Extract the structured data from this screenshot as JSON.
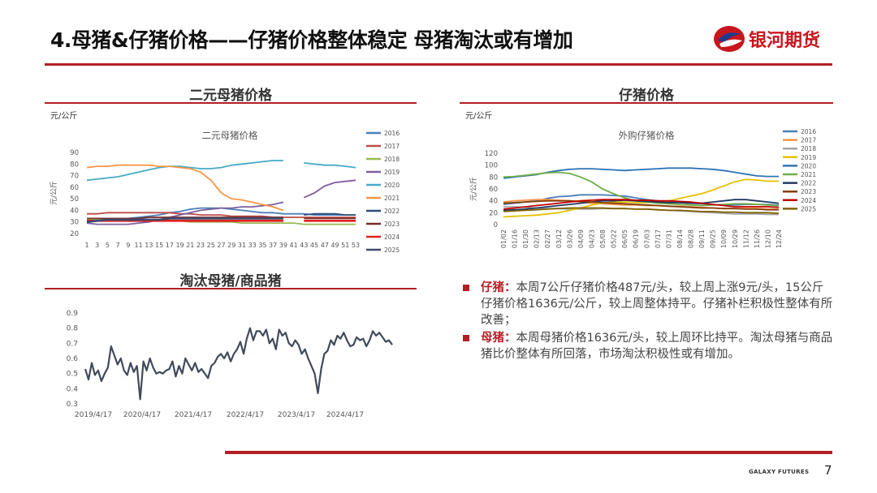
{
  "header": {
    "title": "4.母猪&仔猪价格——仔猪价格整体稳定 母猪淘汰或有增加",
    "logo_text": "银河期货",
    "accent_color": "#b21f24"
  },
  "sections": {
    "sow_price": {
      "heading": "二元母猪价格",
      "unit": "元/公斤"
    },
    "piglet_price": {
      "heading": "仔猪价格",
      "unit": "元/公斤"
    },
    "cull_ratio": {
      "heading": "淘汰母猪/商品猪"
    }
  },
  "bullets": [
    {
      "label": "仔猪：",
      "text": "本周7公斤仔猪价格487元/头，较上周上涨9元/头，15公斤仔猪价格1636元/公斤，较上周整体持平。仔猪补栏积极性整体有所改善；"
    },
    {
      "label": "母猪：",
      "text": "本周母猪价格1636元/头，较上周环比持平。淘汰母猪与商品猪比价整体有所回落，市场淘汰积极性或有增加。"
    }
  ],
  "footer": {
    "brand": "GALAXY FUTURES",
    "page": "7"
  },
  "chart_data": [
    {
      "type": "line",
      "title": "二元母猪价格",
      "ylabel": "元/公斤",
      "ylim": [
        20,
        90
      ],
      "yticks": [
        "20",
        "30",
        "40",
        "50",
        "60",
        "70",
        "80",
        "90"
      ],
      "x": [
        1,
        3,
        5,
        7,
        9,
        11,
        13,
        15,
        17,
        19,
        21,
        23,
        25,
        27,
        29,
        31,
        33,
        35,
        37,
        39,
        41,
        43,
        45,
        47,
        49,
        51,
        53
      ],
      "xticks": [
        "1",
        "3",
        "5",
        "7",
        "9",
        "11",
        "13",
        "15",
        "17",
        "19",
        "21",
        "23",
        "25",
        "27",
        "29",
        "31",
        "33",
        "35",
        "37",
        "39",
        "41",
        "43",
        "45",
        "47",
        "49",
        "51",
        "53"
      ],
      "legend_position": "right",
      "series": [
        {
          "name": "2016",
          "color": "#4a7ebb",
          "values": [
            33,
            33,
            33,
            33,
            33,
            34,
            35,
            36,
            38,
            39,
            41,
            42,
            42,
            42,
            41,
            40,
            39,
            38,
            38,
            37,
            37,
            37,
            36,
            36,
            36,
            36,
            36
          ]
        },
        {
          "name": "2017",
          "color": "#be4b48",
          "values": [
            37,
            37,
            38,
            38,
            38,
            38,
            38,
            38,
            38,
            37,
            37,
            36,
            36,
            36,
            35,
            35,
            35,
            35,
            34,
            34,
            34,
            34,
            34,
            34,
            34,
            34,
            34
          ]
        },
        {
          "name": "2018",
          "color": "#98b954",
          "values": [
            32,
            32,
            31,
            31,
            31,
            31,
            31,
            31,
            31,
            31,
            30,
            30,
            30,
            30,
            30,
            29,
            29,
            29,
            29,
            29,
            29,
            28,
            28,
            28,
            28,
            28,
            28
          ]
        },
        {
          "name": "2019",
          "color": "#7d60a0",
          "values": [
            29,
            28,
            28,
            28,
            28,
            29,
            30,
            32,
            34,
            36,
            38,
            40,
            41,
            42,
            42,
            43,
            43,
            44,
            45,
            47,
            null,
            51,
            55,
            61,
            64,
            65,
            66
          ]
        },
        {
          "name": "2020",
          "color": "#46aac5",
          "values": [
            66,
            67,
            68,
            69,
            71,
            73,
            75,
            77,
            78,
            78,
            77,
            76,
            76,
            77,
            79,
            80,
            81,
            82,
            83,
            83,
            null,
            81,
            80,
            79,
            79,
            78,
            77
          ]
        },
        {
          "name": "2021",
          "color": "#f79646",
          "values": [
            77,
            78,
            78,
            79,
            79,
            79,
            79,
            78,
            78,
            77,
            76,
            73,
            66,
            55,
            50,
            49,
            47,
            45,
            43,
            40,
            null,
            null,
            null,
            null,
            null,
            null,
            null
          ]
        },
        {
          "name": "2022",
          "color": "#2c4d75",
          "values": [
            null,
            null,
            null,
            null,
            null,
            null,
            null,
            null,
            null,
            null,
            null,
            null,
            null,
            null,
            null,
            null,
            null,
            null,
            null,
            null,
            null,
            36,
            37,
            37,
            37,
            36,
            36
          ]
        },
        {
          "name": "2023",
          "color": "#772c2a",
          "values": [
            33,
            33,
            33,
            33,
            33,
            33,
            34,
            34,
            34,
            34,
            34,
            34,
            34,
            34,
            34,
            34,
            34,
            34,
            34,
            34,
            null,
            33,
            33,
            33,
            33,
            33,
            33
          ]
        },
        {
          "name": "2024",
          "color": "#e0201f",
          "values": [
            31,
            31,
            31,
            31,
            31,
            31,
            31,
            31,
            31,
            31,
            31,
            31,
            31,
            31,
            31,
            31,
            31,
            31,
            31,
            31,
            null,
            31,
            31,
            31,
            31,
            31,
            31
          ]
        },
        {
          "name": "2025",
          "color": "#3f4a6b",
          "values": [
            30,
            31,
            32,
            32,
            32,
            32,
            32,
            32,
            33,
            33,
            33,
            33,
            33,
            33,
            33,
            33,
            33,
            33,
            33,
            33,
            null,
            null,
            null,
            null,
            null,
            null,
            null
          ]
        }
      ]
    },
    {
      "type": "line",
      "title": "外购仔猪价格",
      "ylabel": "元/公斤",
      "ylim": [
        0,
        120
      ],
      "yticks": [
        "0",
        "20",
        "40",
        "60",
        "80",
        "100",
        "120"
      ],
      "x": [
        "01/02",
        "01/16",
        "01/30",
        "02/13",
        "02/27",
        "03/12",
        "03/26",
        "04/09",
        "04/23",
        "05/08",
        "05/22",
        "06/05",
        "06/19",
        "07/03",
        "07/17",
        "07/31",
        "08/14",
        "08/28",
        "09/11",
        "09/25",
        "10/09",
        "10/29",
        "11/12",
        "11/26",
        "12/10",
        "12/24"
      ],
      "xticks": [
        "01/02",
        "01/16",
        "01/30",
        "02/13",
        "02/27",
        "03/12",
        "03/26",
        "04/09",
        "04/23",
        "05/08",
        "05/22",
        "06/05",
        "06/19",
        "07/03",
        "07/17",
        "07/31",
        "08/14",
        "08/28",
        "09/11",
        "09/25",
        "10/09",
        "10/29",
        "11/12",
        "11/26",
        "12/10",
        "12/24"
      ],
      "legend_position": "right",
      "series": [
        {
          "name": "2016",
          "color": "#4a7ebb",
          "values": [
            34,
            36,
            38,
            40,
            44,
            47,
            48,
            50,
            50,
            50,
            49,
            48,
            45,
            42,
            40,
            38,
            37,
            36,
            35,
            34,
            33,
            33,
            34,
            34,
            34,
            33
          ]
        },
        {
          "name": "2017",
          "color": "#f79646",
          "values": [
            38,
            40,
            41,
            42,
            42,
            41,
            40,
            38,
            36,
            35,
            34,
            33,
            33,
            32,
            32,
            31,
            31,
            30,
            29,
            28,
            27,
            27,
            27,
            27,
            26,
            26
          ]
        },
        {
          "name": "2018",
          "color": "#a6a6a6",
          "values": [
            30,
            30,
            29,
            28,
            27,
            27,
            26,
            26,
            26,
            27,
            27,
            27,
            26,
            26,
            25,
            24,
            23,
            22,
            21,
            20,
            19,
            18,
            18,
            18,
            17,
            17
          ]
        },
        {
          "name": "2019",
          "color": "#e5c100",
          "values": [
            13,
            14,
            15,
            16,
            18,
            20,
            24,
            28,
            33,
            36,
            38,
            38,
            37,
            37,
            38,
            40,
            44,
            48,
            52,
            58,
            65,
            72,
            76,
            75,
            73,
            73
          ]
        },
        {
          "name": "2020",
          "color": "#2e74b5",
          "values": [
            78,
            80,
            82,
            84,
            88,
            91,
            93,
            94,
            94,
            93,
            92,
            91,
            92,
            93,
            94,
            95,
            95,
            95,
            94,
            93,
            91,
            88,
            85,
            82,
            81,
            81
          ]
        },
        {
          "name": "2021",
          "color": "#70ad47",
          "values": [
            80,
            81,
            83,
            85,
            87,
            88,
            86,
            80,
            72,
            60,
            52,
            45,
            40,
            38,
            36,
            35,
            34,
            33,
            32,
            33,
            34,
            35,
            35,
            34,
            33,
            32
          ]
        },
        {
          "name": "2022",
          "color": "#1f3864",
          "values": [
            24,
            25,
            26,
            28,
            30,
            32,
            34,
            36,
            38,
            40,
            40,
            41,
            40,
            39,
            38,
            37,
            37,
            36,
            36,
            38,
            40,
            42,
            42,
            40,
            38,
            36
          ]
        },
        {
          "name": "2023",
          "color": "#843c0c",
          "values": [
            36,
            37,
            38,
            39,
            40,
            40,
            40,
            39,
            38,
            37,
            36,
            35,
            34,
            33,
            32,
            31,
            30,
            29,
            28,
            28,
            27,
            27,
            26,
            26,
            25,
            25
          ]
        },
        {
          "name": "2024",
          "color": "#c00000",
          "values": [
            26,
            28,
            30,
            32,
            34,
            36,
            38,
            40,
            41,
            42,
            42,
            42,
            41,
            41,
            40,
            40,
            39,
            38,
            36,
            34,
            32,
            30,
            30,
            30,
            30,
            29
          ]
        },
        {
          "name": "2025",
          "color": "#7f6000",
          "values": [
            22,
            23,
            24,
            25,
            26,
            27,
            28,
            28,
            28,
            28,
            27,
            27,
            26,
            26,
            25,
            24,
            24,
            23,
            22,
            22,
            21,
            21,
            20,
            20,
            20,
            19
          ]
        }
      ]
    },
    {
      "type": "line",
      "ylim": [
        0.3,
        0.9
      ],
      "yticks": [
        "0.3",
        "0.4",
        "0.5",
        "0.6",
        "0.7",
        "0.8",
        "0.9"
      ],
      "xticks": [
        "2019/4/17",
        "2020/4/17",
        "2021/4/17",
        "2022/4/17",
        "2023/4/17",
        "2024/4/17"
      ],
      "series": [
        {
          "color": "#404a5a",
          "values": [
            0.53,
            0.46,
            0.57,
            0.49,
            0.52,
            0.45,
            0.5,
            0.54,
            0.68,
            0.62,
            0.56,
            0.6,
            0.52,
            0.49,
            0.57,
            0.51,
            0.55,
            0.33,
            0.58,
            0.52,
            0.6,
            0.54,
            0.5,
            0.51,
            0.5,
            0.52,
            0.53,
            0.58,
            0.48,
            0.55,
            0.5,
            0.6,
            0.56,
            0.52,
            0.57,
            0.51,
            0.53,
            0.5,
            0.47,
            0.55,
            0.57,
            0.61,
            0.63,
            0.6,
            0.64,
            0.58,
            0.63,
            0.66,
            0.71,
            0.63,
            0.73,
            0.8,
            0.72,
            0.78,
            0.78,
            0.75,
            0.79,
            0.7,
            0.73,
            0.66,
            0.79,
            0.75,
            0.77,
            0.7,
            0.68,
            0.72,
            0.69,
            0.63,
            0.66,
            0.6,
            0.55,
            0.5,
            0.37,
            0.53,
            0.63,
            0.65,
            0.72,
            0.69,
            0.75,
            0.73,
            0.77,
            0.72,
            0.68,
            0.69,
            0.74,
            0.72,
            0.73,
            0.68,
            0.72,
            0.78,
            0.75,
            0.77,
            0.74,
            0.71,
            0.72,
            0.69
          ]
        }
      ]
    }
  ]
}
